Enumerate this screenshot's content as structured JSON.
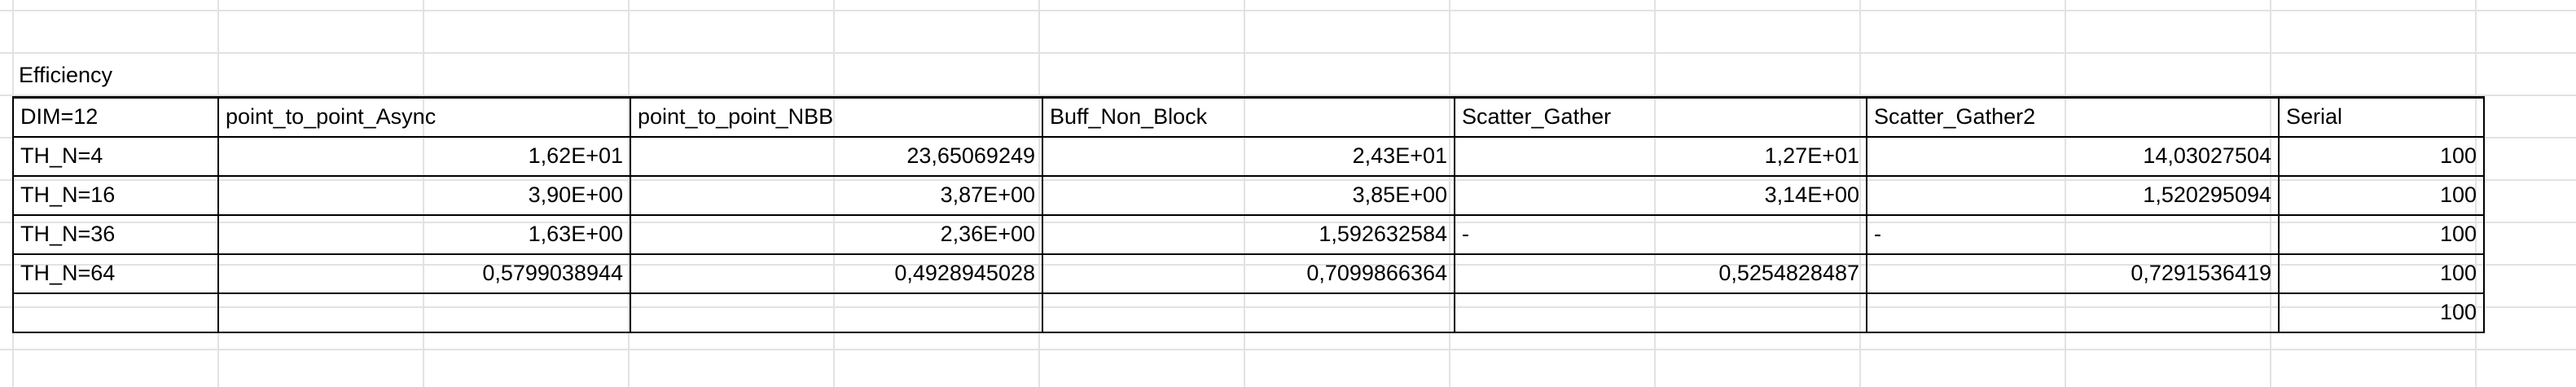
{
  "title": "Efficiency",
  "headers": [
    "DIM=12",
    "point_to_point_Async",
    "point_to_point_NBB",
    "Buff_Non_Block",
    "Scatter_Gather",
    "Scatter_Gather2",
    "Serial"
  ],
  "rows": [
    [
      "TH_N=4",
      "1,62E+01",
      "23,65069249",
      "2,43E+01",
      "1,27E+01",
      "14,03027504",
      "100"
    ],
    [
      "TH_N=16",
      "3,90E+00",
      "3,87E+00",
      "3,85E+00",
      "3,14E+00",
      "1,520295094",
      "100"
    ],
    [
      "TH_N=36",
      "1,63E+00",
      "2,36E+00",
      "1,592632584",
      "-",
      "-",
      "100"
    ],
    [
      "TH_N=64",
      "0,5799038944",
      "0,4928945028",
      "0,7099866364",
      "0,5254828487",
      "0,7291536419",
      "100"
    ],
    [
      "",
      "",
      "",
      "",
      "",
      "",
      "100"
    ]
  ]
}
